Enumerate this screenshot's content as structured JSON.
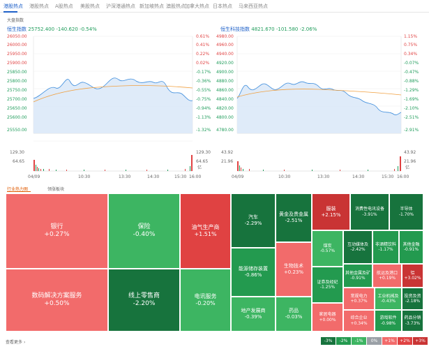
{
  "tabs": [
    "港股热点",
    "港股热点",
    "A股热点",
    "美股热点",
    "沪深港通热点",
    "新加坡热点",
    "澳股热点",
    "加拿大热点",
    "日本热点",
    "马来西亚热点"
  ],
  "section": "大盘指数",
  "left_chart": {
    "name": "恒生指数",
    "price": "25752.400",
    "change": "-140.620",
    "pct": "-0.54%",
    "y_prices": [
      "26050.00",
      "26000.00",
      "25950.00",
      "25900.00",
      "25850.00",
      "25800.00",
      "25750.00",
      "25700.00",
      "25650.00",
      "25600.00",
      "25550.00"
    ],
    "y_pcts": [
      "0.61%",
      "0.41%",
      "0.22%",
      "0.02%",
      "-0.17%",
      "-0.36%",
      "-0.55%",
      "-0.75%",
      "-0.94%",
      "-1.13%",
      "-1.32%"
    ],
    "vol_left": [
      "129.30",
      "64.65"
    ],
    "vol_right": [
      "129.30",
      "64.65",
      "亿"
    ],
    "x_labels": [
      "04/09",
      "10:30",
      "13:30",
      "14:30",
      "15:30",
      "16:00"
    ],
    "colors": {
      "line": "#3c8cdc",
      "area": "#dce9f8",
      "avg": "#f0a040"
    }
  },
  "right_chart": {
    "name": "恒生科技指数",
    "price": "4821.670",
    "change": "-101.580",
    "pct": "-2.06%",
    "y_prices": [
      "4980.00",
      "4960.00",
      "4940.00",
      "4920.00",
      "4900.00",
      "4880.00",
      "4860.00",
      "4840.00",
      "4820.00",
      "4800.00",
      "4780.00"
    ],
    "y_pcts": [
      "1.15%",
      "0.75%",
      "0.34%",
      "-0.07%",
      "-0.47%",
      "-0.88%",
      "-1.29%",
      "-1.69%",
      "-2.10%",
      "-2.51%",
      "-2.91%"
    ],
    "vol_left": [
      "43.92",
      "21.96"
    ],
    "vol_right": [
      "43.92",
      "21.96",
      "亿"
    ],
    "x_labels": [
      "04/09",
      "10:30",
      "13:30",
      "14:30",
      "15:30",
      "16:00"
    ]
  },
  "subtabs": [
    "行业热力图",
    "领涨板块"
  ],
  "heatmap": [
    {
      "name": "银行",
      "value": "+0.27%",
      "color": "#f26b6b"
    },
    {
      "name": "数码解决方案服务",
      "value": "+0.50%",
      "color": "#f26b6b"
    },
    {
      "name": "保险",
      "value": "-0.40%",
      "color": "#3db562"
    },
    {
      "name": "线上零售商",
      "value": "-2.20%",
      "color": "#17733d"
    },
    {
      "name": "油气生产商",
      "value": "+1.51%",
      "color": "#e04242"
    },
    {
      "name": "电讯服务",
      "value": "-0.20%",
      "color": "#3db562"
    },
    {
      "name": "汽车",
      "value": "-2.29%",
      "color": "#17733d"
    },
    {
      "name": "能源储存装置",
      "value": "-0.86%",
      "color": "#239a4f"
    },
    {
      "name": "地产发展商",
      "value": "-0.39%",
      "color": "#3db562"
    },
    {
      "name": "黄金及贵金属",
      "value": "-2.51%",
      "color": "#17733d"
    },
    {
      "name": "生物技术",
      "value": "+0.23%",
      "color": "#f26b6b"
    },
    {
      "name": "药品",
      "value": "-0.03%",
      "color": "#3db562"
    },
    {
      "name": "服装",
      "value": "+2.15%",
      "color": "#c93434"
    },
    {
      "name": "煤炭",
      "value": "-0.57%",
      "color": "#3db562"
    },
    {
      "name": "证券及经纪",
      "value": "-1.25%",
      "color": "#239a4f"
    },
    {
      "name": "家居电器",
      "value": "+0.00%",
      "color": "#f26b6b"
    },
    {
      "name": "消费性电讯设备",
      "value": "-3.91%",
      "color": "#17733d"
    },
    {
      "name": "半导体",
      "value": "-1.70%",
      "color": "#17733d"
    },
    {
      "name": "互动媒体及",
      "value": "-2.42%",
      "color": "#17733d"
    },
    {
      "name": "非酒精饮料",
      "value": "-1.17%",
      "color": "#239a4f"
    },
    {
      "name": "其他金融",
      "value": "-0.91%",
      "color": "#239a4f"
    },
    {
      "name": "其他金属及矿",
      "value": "-0.91%",
      "color": "#239a4f"
    },
    {
      "name": "航运及港口",
      "value": "+0.19%",
      "color": "#f26b6b"
    },
    {
      "name": "铝",
      "value": "+3.02%",
      "color": "#c93434"
    },
    {
      "name": "常规电力",
      "value": "+0.37%",
      "color": "#f26b6b"
    },
    {
      "name": "工业机械及",
      "value": "-0.43%",
      "color": "#3db562"
    },
    {
      "name": "投资及资",
      "value": "-2.18%",
      "color": "#17733d"
    },
    {
      "name": "综合企业",
      "value": "+0.34%",
      "color": "#f26b6b"
    },
    {
      "name": "游戏软件",
      "value": "-0.98%",
      "color": "#239a4f"
    },
    {
      "name": "药品分销",
      "value": "-3.73%",
      "color": "#17733d"
    }
  ],
  "footer": {
    "more": "查看更多",
    "legend": [
      {
        "label": "-3%",
        "color": "#17733d"
      },
      {
        "label": "-2%",
        "color": "#239a4f"
      },
      {
        "label": "-1%",
        "color": "#3db562"
      },
      {
        "label": "0%",
        "color": "#9aa0a6"
      },
      {
        "label": "+1%",
        "color": "#f26b6b"
      },
      {
        "label": "+2%",
        "color": "#e04242"
      },
      {
        "label": "+3%",
        "color": "#c93434"
      }
    ]
  }
}
